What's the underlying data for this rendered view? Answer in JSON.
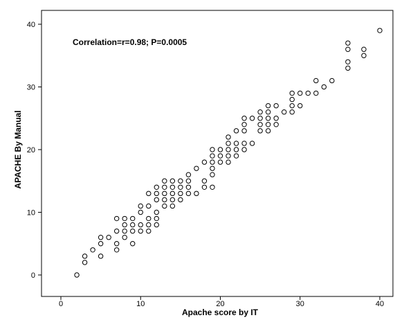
{
  "chart_data": {
    "type": "scatter",
    "title": "",
    "annotation": "Correlation=r=0.98;   P=0.0005",
    "xlabel": "Apache score by IT",
    "ylabel": "APACHE By Manual",
    "xlim": [
      -2,
      42
    ],
    "ylim": [
      -2,
      42
    ],
    "xticks": [
      0,
      10,
      20,
      30,
      40
    ],
    "yticks": [
      0,
      10,
      20,
      30,
      40
    ],
    "grid": false,
    "marker": "open-circle",
    "marker_color": "#000000",
    "points": [
      [
        2,
        0
      ],
      [
        3,
        2
      ],
      [
        3,
        3
      ],
      [
        4,
        4
      ],
      [
        5,
        3
      ],
      [
        5,
        5
      ],
      [
        5,
        6
      ],
      [
        6,
        6
      ],
      [
        7,
        4
      ],
      [
        7,
        5
      ],
      [
        7,
        7
      ],
      [
        7,
        9
      ],
      [
        8,
        6
      ],
      [
        8,
        7
      ],
      [
        8,
        8
      ],
      [
        8,
        9
      ],
      [
        9,
        5
      ],
      [
        9,
        7
      ],
      [
        9,
        8
      ],
      [
        9,
        9
      ],
      [
        10,
        7
      ],
      [
        10,
        8
      ],
      [
        10,
        10
      ],
      [
        10,
        11
      ],
      [
        11,
        7
      ],
      [
        11,
        8
      ],
      [
        11,
        9
      ],
      [
        11,
        11
      ],
      [
        11,
        13
      ],
      [
        12,
        8
      ],
      [
        12,
        9
      ],
      [
        12,
        10
      ],
      [
        12,
        12
      ],
      [
        12,
        13
      ],
      [
        12,
        14
      ],
      [
        13,
        11
      ],
      [
        13,
        12
      ],
      [
        13,
        13
      ],
      [
        13,
        14
      ],
      [
        13,
        15
      ],
      [
        14,
        11
      ],
      [
        14,
        12
      ],
      [
        14,
        13
      ],
      [
        14,
        14
      ],
      [
        14,
        15
      ],
      [
        15,
        12
      ],
      [
        15,
        13
      ],
      [
        15,
        14
      ],
      [
        15,
        15
      ],
      [
        16,
        13
      ],
      [
        16,
        14
      ],
      [
        16,
        15
      ],
      [
        16,
        16
      ],
      [
        17,
        13
      ],
      [
        17,
        17
      ],
      [
        18,
        14
      ],
      [
        18,
        15
      ],
      [
        18,
        18
      ],
      [
        19,
        14
      ],
      [
        19,
        16
      ],
      [
        19,
        17
      ],
      [
        19,
        18
      ],
      [
        19,
        19
      ],
      [
        19,
        20
      ],
      [
        20,
        18
      ],
      [
        20,
        19
      ],
      [
        20,
        20
      ],
      [
        21,
        18
      ],
      [
        21,
        19
      ],
      [
        21,
        20
      ],
      [
        21,
        21
      ],
      [
        21,
        22
      ],
      [
        22,
        19
      ],
      [
        22,
        20
      ],
      [
        22,
        21
      ],
      [
        22,
        23
      ],
      [
        23,
        20
      ],
      [
        23,
        21
      ],
      [
        23,
        23
      ],
      [
        23,
        24
      ],
      [
        23,
        25
      ],
      [
        24,
        21
      ],
      [
        24,
        25
      ],
      [
        25,
        23
      ],
      [
        25,
        24
      ],
      [
        25,
        25
      ],
      [
        25,
        26
      ],
      [
        26,
        23
      ],
      [
        26,
        24
      ],
      [
        26,
        25
      ],
      [
        26,
        26
      ],
      [
        26,
        27
      ],
      [
        27,
        24
      ],
      [
        27,
        25
      ],
      [
        27,
        27
      ],
      [
        28,
        26
      ],
      [
        29,
        26
      ],
      [
        29,
        27
      ],
      [
        29,
        28
      ],
      [
        29,
        29
      ],
      [
        30,
        27
      ],
      [
        30,
        29
      ],
      [
        31,
        29
      ],
      [
        32,
        29
      ],
      [
        32,
        31
      ],
      [
        33,
        30
      ],
      [
        34,
        31
      ],
      [
        36,
        33
      ],
      [
        36,
        34
      ],
      [
        36,
        36
      ],
      [
        36,
        37
      ],
      [
        38,
        35
      ],
      [
        38,
        36
      ],
      [
        40,
        39
      ]
    ]
  }
}
